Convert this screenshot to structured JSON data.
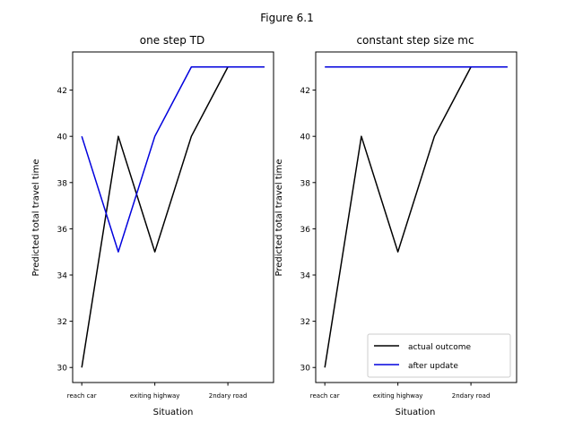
{
  "suptitle": "Figure 6.1",
  "colors": {
    "actual": "#000000",
    "after": "#0000dd"
  },
  "legend": {
    "placement": "lower-right",
    "subplot": 1,
    "entries": [
      {
        "label": "actual outcome",
        "color": "#000000"
      },
      {
        "label": "after update",
        "color": "#0000dd"
      }
    ]
  },
  "chart_data": [
    {
      "type": "line",
      "title": "one step TD",
      "xlabel": "Situation",
      "ylabel": "Predicted total travel time",
      "x": [
        0,
        1,
        2,
        3,
        4,
        5
      ],
      "xticks": [
        0,
        2,
        4
      ],
      "xticklabels": [
        "reach car",
        "exiting highway",
        "2ndary road"
      ],
      "yticks": [
        30,
        32,
        34,
        36,
        38,
        40,
        42
      ],
      "xlim": [
        -0.25,
        5.25
      ],
      "ylim": [
        29.35,
        43.65
      ],
      "grid": false,
      "series": [
        {
          "name": "actual outcome",
          "color": "#000000",
          "values": [
            30,
            40,
            35,
            40,
            43,
            43
          ]
        },
        {
          "name": "after update",
          "color": "#0000dd",
          "values": [
            40,
            35,
            40,
            43,
            43,
            43
          ]
        }
      ]
    },
    {
      "type": "line",
      "title": "constant step size mc",
      "xlabel": "Situation",
      "ylabel": "Predicted total travel time",
      "x": [
        0,
        1,
        2,
        3,
        4,
        5
      ],
      "xticks": [
        0,
        2,
        4
      ],
      "xticklabels": [
        "reach car",
        "exiting highway",
        "2ndary road"
      ],
      "yticks": [
        30,
        32,
        34,
        36,
        38,
        40,
        42
      ],
      "xlim": [
        -0.25,
        5.25
      ],
      "ylim": [
        29.35,
        43.65
      ],
      "grid": false,
      "series": [
        {
          "name": "actual outcome",
          "color": "#000000",
          "values": [
            30,
            40,
            35,
            40,
            43,
            43
          ]
        },
        {
          "name": "after update",
          "color": "#0000dd",
          "values": [
            43,
            43,
            43,
            43,
            43,
            43
          ]
        }
      ]
    }
  ]
}
